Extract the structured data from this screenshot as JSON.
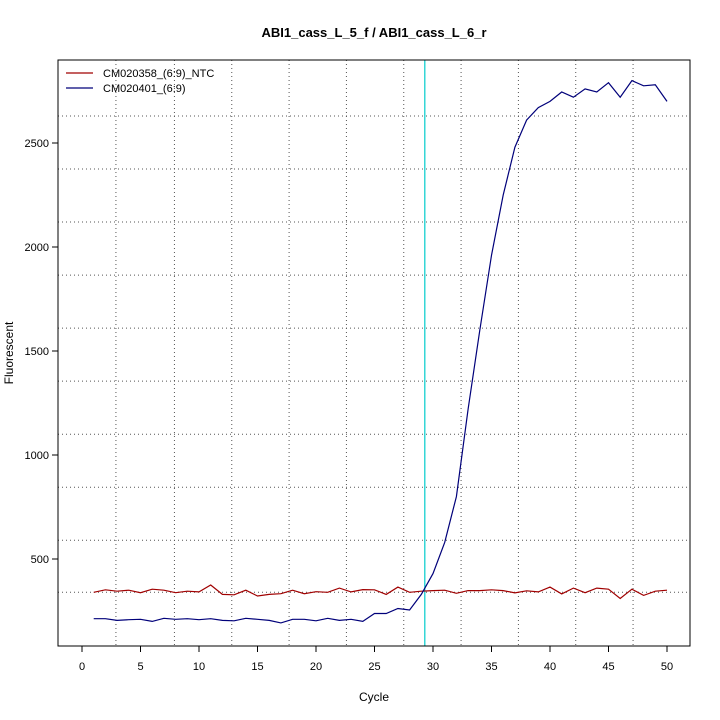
{
  "chart_data": {
    "type": "line",
    "title": "ABI1_cass_L_5_f / ABI1_cass_L_6_r",
    "xlabel": "Cycle",
    "ylabel": "Fluorescent",
    "xlim": [
      0,
      50
    ],
    "ylim": [
      180,
      2820
    ],
    "xticks": [
      0,
      5,
      10,
      15,
      20,
      25,
      30,
      35,
      40,
      45,
      50
    ],
    "yticks": [
      500,
      1000,
      1500,
      2000,
      2500
    ],
    "grid": true,
    "grid_x": [
      2.9,
      7.9,
      12.8,
      17.7,
      22.6,
      27.5,
      32.4,
      37.3,
      42.2,
      47.1
    ],
    "grid_y": [
      340,
      590,
      845,
      1100,
      1355,
      1610,
      1865,
      2120,
      2375,
      2630
    ],
    "threshold_cycle": 29.3,
    "threshold_color": "#00cccc",
    "legend_position": "top-left",
    "x": [
      1,
      2,
      3,
      4,
      5,
      6,
      7,
      8,
      9,
      10,
      11,
      12,
      13,
      14,
      15,
      16,
      17,
      18,
      19,
      20,
      21,
      22,
      23,
      24,
      25,
      26,
      27,
      28,
      29,
      30,
      31,
      32,
      33,
      34,
      35,
      36,
      37,
      38,
      39,
      40,
      41,
      42,
      43,
      44,
      45,
      46,
      47,
      48,
      49,
      50
    ],
    "series": [
      {
        "name": "CM020358_(6:9)_NTC",
        "color": "#a00000",
        "values": [
          340,
          352,
          345,
          350,
          338,
          355,
          350,
          338,
          345,
          342,
          375,
          330,
          328,
          350,
          322,
          330,
          333,
          350,
          333,
          343,
          340,
          360,
          342,
          353,
          352,
          330,
          365,
          340,
          345,
          348,
          350,
          335,
          348,
          348,
          352,
          348,
          337,
          347,
          342,
          365,
          332,
          360,
          338,
          360,
          355,
          310,
          355,
          325,
          345,
          350
        ]
      },
      {
        "name": "CM020401_(6:9)",
        "color": "#00007a",
        "values": [
          213,
          213,
          205,
          208,
          210,
          200,
          215,
          210,
          213,
          208,
          213,
          205,
          203,
          215,
          210,
          205,
          193,
          210,
          210,
          203,
          215,
          205,
          210,
          200,
          238,
          238,
          262,
          255,
          330,
          430,
          580,
          800,
          1220,
          1600,
          1960,
          2250,
          2480,
          2610,
          2670,
          2700,
          2745,
          2720,
          2760,
          2745,
          2790,
          2720,
          2800,
          2775,
          2780,
          2700
        ]
      }
    ]
  }
}
